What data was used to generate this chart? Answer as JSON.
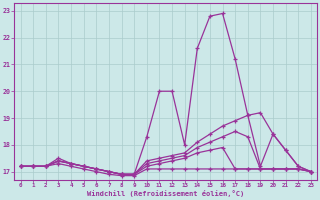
{
  "xlabel": "Windchill (Refroidissement éolien,°C)",
  "xlim": [
    -0.5,
    23.5
  ],
  "ylim": [
    16.7,
    23.3
  ],
  "yticks": [
    17,
    18,
    19,
    20,
    21,
    22,
    23
  ],
  "xticks": [
    0,
    1,
    2,
    3,
    4,
    5,
    6,
    7,
    8,
    9,
    10,
    11,
    12,
    13,
    14,
    15,
    16,
    17,
    18,
    19,
    20,
    21,
    22,
    23
  ],
  "bg_color": "#cce8e8",
  "grid_color": "#aacccc",
  "line_color": "#993399",
  "series": [
    [
      17.2,
      17.2,
      17.2,
      17.5,
      17.3,
      17.2,
      17.1,
      17.0,
      16.9,
      16.9,
      18.3,
      20.0,
      20.0,
      18.0,
      21.6,
      22.8,
      22.9,
      21.2,
      19.1,
      17.2,
      18.4,
      17.8,
      17.2,
      17.0
    ],
    [
      17.2,
      17.2,
      17.2,
      17.4,
      17.3,
      17.2,
      17.1,
      17.0,
      16.9,
      16.9,
      17.4,
      17.5,
      17.6,
      17.7,
      18.1,
      18.4,
      18.7,
      18.9,
      19.1,
      19.2,
      18.4,
      17.8,
      17.2,
      17.0
    ],
    [
      17.2,
      17.2,
      17.2,
      17.4,
      17.3,
      17.2,
      17.1,
      17.0,
      16.9,
      16.9,
      17.3,
      17.4,
      17.5,
      17.6,
      17.9,
      18.1,
      18.3,
      18.5,
      18.3,
      17.1,
      17.1,
      17.1,
      17.1,
      17.0
    ],
    [
      17.2,
      17.2,
      17.2,
      17.4,
      17.3,
      17.2,
      17.1,
      17.0,
      16.9,
      16.9,
      17.2,
      17.3,
      17.4,
      17.5,
      17.7,
      17.8,
      17.9,
      17.1,
      17.1,
      17.1,
      17.1,
      17.1,
      17.1,
      17.0
    ],
    [
      17.2,
      17.2,
      17.2,
      17.3,
      17.2,
      17.1,
      17.0,
      16.9,
      16.85,
      16.85,
      17.1,
      17.1,
      17.1,
      17.1,
      17.1,
      17.1,
      17.1,
      17.1,
      17.1,
      17.1,
      17.1,
      17.1,
      17.1,
      17.0
    ]
  ]
}
